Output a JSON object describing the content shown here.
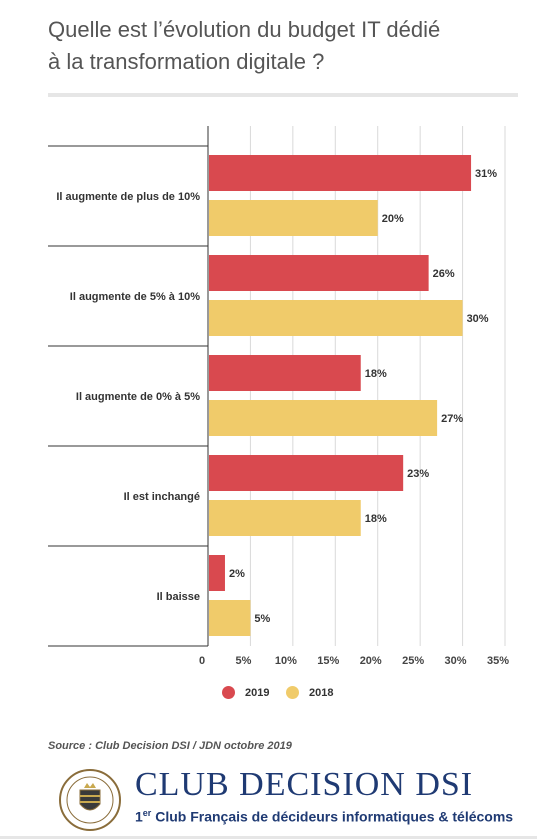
{
  "header": {
    "title_line1": "Quelle est l’évolution du budget IT dédié",
    "title_line2": "à la transformation digitale ?"
  },
  "colors": {
    "series_2019": "#d9494f",
    "series_2018": "#f0cb6a",
    "title": "#555555",
    "brand": "#1f3a73"
  },
  "chart_data": {
    "type": "bar",
    "orientation": "horizontal",
    "categories": [
      "Il augmente de plus de 10%",
      "Il augmente de 5% à 10%",
      "Il augmente de 0% à 5%",
      "Il est inchangé",
      "Il baisse"
    ],
    "series": [
      {
        "name": "2019",
        "values": [
          31,
          26,
          18,
          23,
          2
        ]
      },
      {
        "name": "2018",
        "values": [
          20,
          30,
          27,
          18,
          5
        ]
      }
    ],
    "value_labels": [
      [
        "31%",
        "26%",
        "18%",
        "23%",
        "2%"
      ],
      [
        "20%",
        "30%",
        "27%",
        "18%",
        "5%"
      ]
    ],
    "xticks": [
      "0",
      "5%",
      "10%",
      "15%",
      "20%",
      "25%",
      "30%",
      "35%"
    ],
    "xlim": [
      0,
      35
    ],
    "grid": true,
    "legend_position": "bottom"
  },
  "legend": {
    "items": [
      "2019",
      "2018"
    ]
  },
  "source": {
    "text": "Source : Club Decision DSI / JDN octobre 2019"
  },
  "brand": {
    "name": "CLUB DECISION DSI",
    "tagline_prefix": "1",
    "tagline_sup": "er",
    "tagline_rest": " Club Français de décideurs informatiques & télécoms"
  }
}
